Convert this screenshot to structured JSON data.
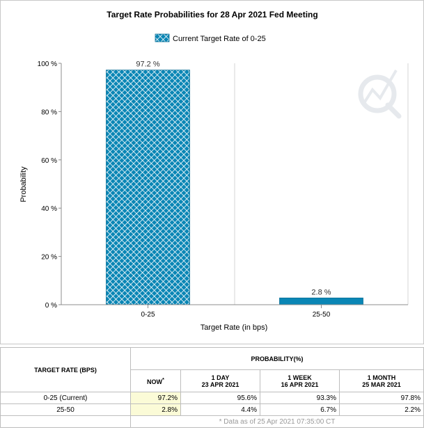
{
  "chart_data": {
    "type": "bar",
    "title": "Target Rate Probabilities for 28 Apr 2021 Fed Meeting",
    "legend": "Current Target Rate of 0-25",
    "categories": [
      "0-25",
      "25-50"
    ],
    "values": [
      97.2,
      2.8
    ],
    "data_labels": [
      "97.2 %",
      "2.8 %"
    ],
    "xlabel": "Target Rate (in bps)",
    "ylabel": "Probability",
    "ylim": [
      0,
      100
    ],
    "yticks": [
      0,
      20,
      40,
      60,
      80,
      100
    ],
    "ytick_labels": [
      "0 %",
      "20 %",
      "40 %",
      "60 %",
      "80 %",
      "100 %"
    ],
    "grid": "vertical",
    "colors": {
      "bar": "#0a86b5",
      "pattern_light": "#ffffff"
    }
  },
  "table": {
    "target_rate_header": "TARGET RATE (BPS)",
    "probability_header": "PROBABILITY(%)",
    "columns": [
      {
        "line1": "NOW",
        "line2": "",
        "marker": "*"
      },
      {
        "line1": "1 DAY",
        "line2": "23 APR 2021",
        "marker": ""
      },
      {
        "line1": "1 WEEK",
        "line2": "16 APR 2021",
        "marker": ""
      },
      {
        "line1": "1 MONTH",
        "line2": "25 MAR 2021",
        "marker": ""
      }
    ],
    "rows": [
      {
        "rate": "0-25 (Current)",
        "values": [
          "97.2%",
          "95.6%",
          "93.3%",
          "97.8%"
        ]
      },
      {
        "rate": "25-50",
        "values": [
          "2.8%",
          "4.4%",
          "6.7%",
          "2.2%"
        ]
      }
    ],
    "footnote": "* Data as of 25 Apr 2021 07:35:00 CT"
  }
}
